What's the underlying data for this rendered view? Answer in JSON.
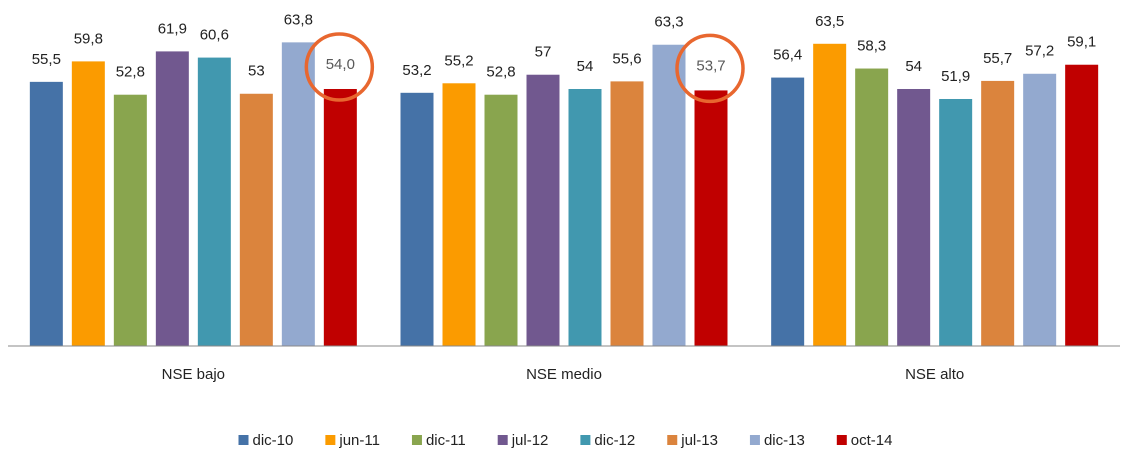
{
  "chart_data": {
    "type": "bar",
    "categories": [
      "NSE bajo",
      "NSE medio",
      "NSE alto"
    ],
    "ylim": [
      0,
      72.7
    ],
    "legend": "bottom",
    "circle_color": "#e8672f",
    "series": [
      {
        "name": "dic-10",
        "color": "#4572a7",
        "values": [
          55.5,
          53.2,
          56.4
        ],
        "value_labels": [
          "55,5",
          "53,2",
          "56,4"
        ]
      },
      {
        "name": "jun-11",
        "color": "#fb9b00",
        "values": [
          59.8,
          55.2,
          63.5
        ],
        "value_labels": [
          "59,8",
          "55,2",
          "63,5"
        ]
      },
      {
        "name": "dic-11",
        "color": "#89a54e",
        "values": [
          52.8,
          52.8,
          58.3
        ],
        "value_labels": [
          "52,8",
          "52,8",
          "58,3"
        ]
      },
      {
        "name": "jul-12",
        "color": "#71588f",
        "values": [
          61.9,
          57,
          54
        ],
        "value_labels": [
          "61,9",
          "57",
          "54"
        ]
      },
      {
        "name": "dic-12",
        "color": "#4198af",
        "values": [
          60.6,
          54,
          51.9
        ],
        "value_labels": [
          "60,6",
          "54",
          "51,9"
        ]
      },
      {
        "name": "jul-13",
        "color": "#db843d",
        "values": [
          53,
          55.6,
          55.7
        ],
        "value_labels": [
          "53",
          "55,6",
          "55,7"
        ]
      },
      {
        "name": "dic-13",
        "color": "#93a9cf",
        "values": [
          63.8,
          63.3,
          57.2
        ],
        "value_labels": [
          "63,8",
          "63,3",
          "57,2"
        ]
      },
      {
        "name": "oct-14",
        "color": "#c00000",
        "values": [
          54.0,
          53.7,
          59.1
        ],
        "value_labels": [
          "54,0",
          "53,7",
          "59,1"
        ],
        "circled": [
          true,
          true,
          false
        ]
      }
    ]
  }
}
